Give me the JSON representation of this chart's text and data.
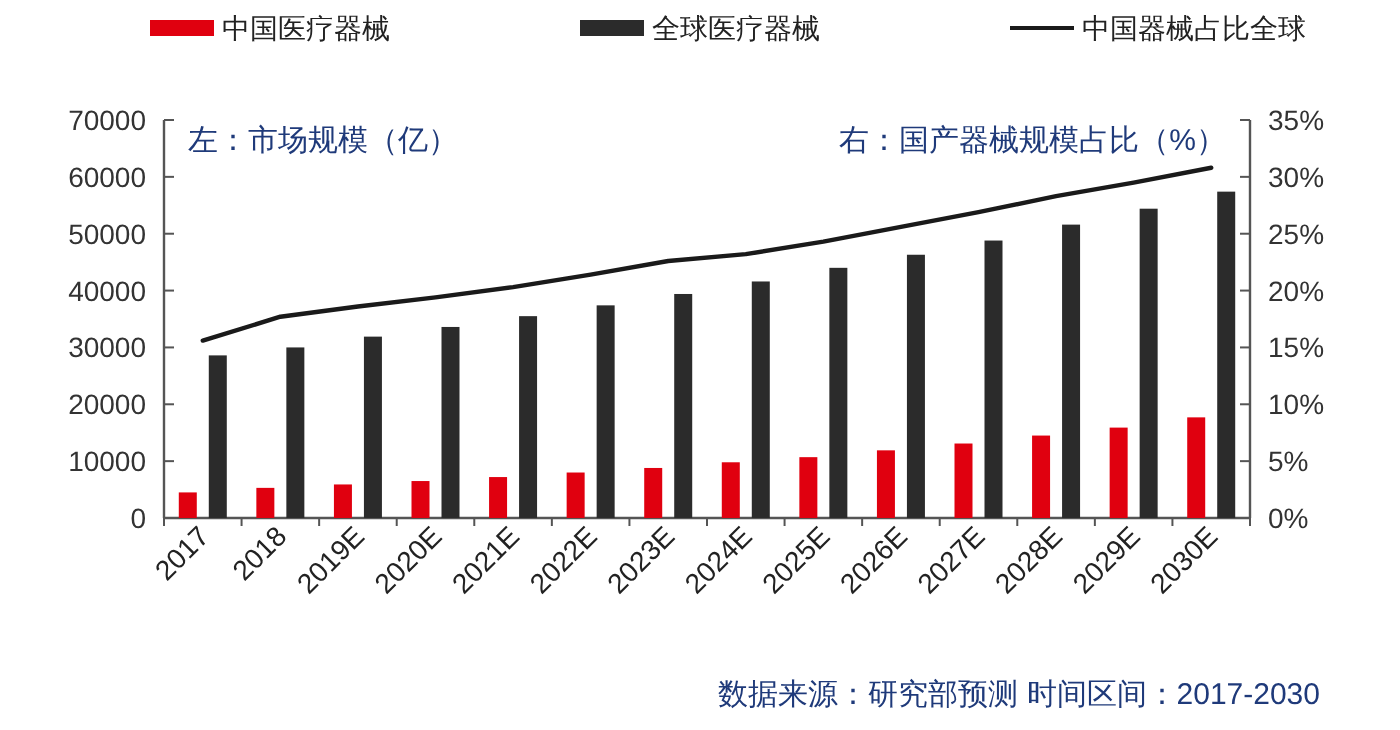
{
  "chart_data": {
    "type": "bar",
    "ylabel": "左：市场规模（亿）",
    "y2label": "右：国产器械规模占比（%）",
    "categories": [
      "2017",
      "2018",
      "2019E",
      "2020E",
      "2021E",
      "2022E",
      "2023E",
      "2024E",
      "2025E",
      "2026E",
      "2027E",
      "2028E",
      "2029E",
      "2030E"
    ],
    "series": [
      {
        "name": "中国医疗器械",
        "color": "#e0000f",
        "values": [
          4500,
          5300,
          5900,
          6500,
          7200,
          8000,
          8800,
          9800,
          10700,
          11900,
          13100,
          14500,
          15900,
          17700
        ]
      },
      {
        "name": "全球医疗器械",
        "color": "#2b2b2b",
        "values": [
          28600,
          30000,
          31900,
          33600,
          35500,
          37400,
          39400,
          41600,
          44000,
          46300,
          48800,
          51600,
          54400,
          57400
        ]
      },
      {
        "name": "中国器械占比全球",
        "type": "line",
        "axis": "y2",
        "color": "#1a1a1a",
        "values": [
          15.6,
          17.7,
          18.6,
          19.4,
          20.3,
          21.4,
          22.6,
          23.2,
          24.3,
          25.6,
          26.9,
          28.3,
          29.5,
          30.8
        ]
      }
    ],
    "ylim": [
      0,
      70000
    ],
    "yticks": [
      0,
      10000,
      20000,
      30000,
      40000,
      50000,
      60000,
      70000
    ],
    "y2lim": [
      0,
      35
    ],
    "y2ticks": [
      {
        "value": 0,
        "label": "0%"
      },
      {
        "value": 5,
        "label": "5%"
      },
      {
        "value": 10,
        "label": "10%"
      },
      {
        "value": 15,
        "label": "15%"
      },
      {
        "value": 20,
        "label": "20%"
      },
      {
        "value": 25,
        "label": "25%"
      },
      {
        "value": 30,
        "label": "30%"
      },
      {
        "value": 35,
        "label": "35%"
      }
    ],
    "legend": "top",
    "marker": "none",
    "line_style": "solid",
    "annotations": [
      "数据来源：研究部预测 时间区间：2017-2030"
    ]
  }
}
